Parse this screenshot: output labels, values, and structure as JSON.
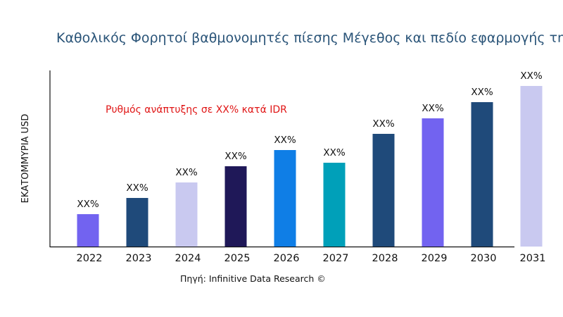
{
  "chart_data": {
    "type": "bar",
    "title": "Καθολικός Φορητοί βαθμονομητές πίεσης Μέγεθος και πεδίο εφαρμογής της",
    "ylabel": "ΕΚΑΤΟΜΜΥΡΙΑ USD",
    "xlabel": "",
    "categories": [
      "2022",
      "2023",
      "2024",
      "2025",
      "2026",
      "2027",
      "2028",
      "2029",
      "2030",
      "2031"
    ],
    "values": [
      46,
      69,
      91,
      114,
      137,
      119,
      160,
      182,
      205,
      228
    ],
    "data_labels": [
      "XX%",
      "XX%",
      "XX%",
      "XX%",
      "XX%",
      "XX%",
      "XX%",
      "XX%",
      "XX%",
      "XX%"
    ],
    "colors": [
      "#7263f0",
      "#1f4a7a",
      "#c9c9f0",
      "#1f1858",
      "#0f7ee6",
      "#00a0b9",
      "#1f4a7a",
      "#7263f0",
      "#1f4a7a",
      "#c9c9f0"
    ],
    "ylim": [
      0,
      250
    ],
    "grid": false,
    "annotation": "Ρυθμός ανάπτυξης σε XX% κατά IDR",
    "source": "Πηγή: Infinitive Data Research ©"
  }
}
